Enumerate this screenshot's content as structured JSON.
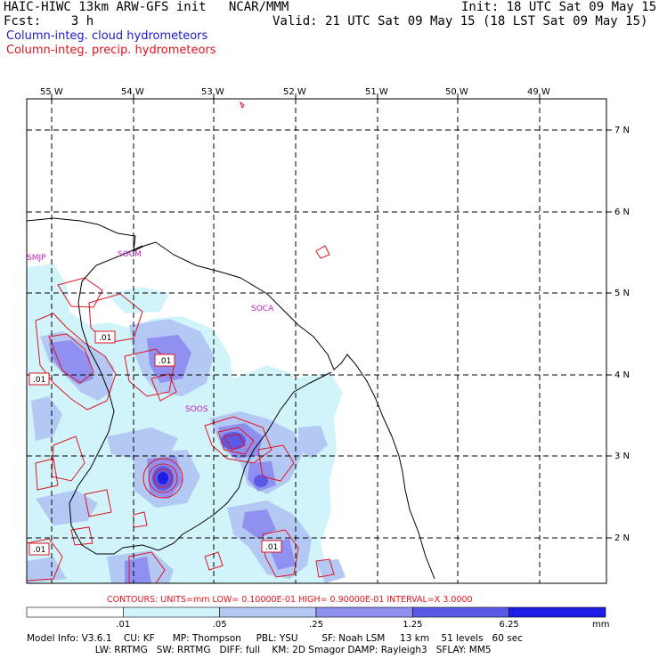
{
  "header": {
    "model_line": "HAIC-HIWC 13km ARW-GFS init   NCAR/MMM",
    "fcst_line": "Fcst:    3 h",
    "init_line": "Init: 18 UTC Sat 09 May 15",
    "valid_line": "Valid: 21 UTC Sat 09 May 15 (18 LST Sat 09 May 15)",
    "legend_cloud": "Column-integ. cloud hydrometeors",
    "legend_precip": "Column-integ. precip. hydrometeors"
  },
  "map": {
    "lon_labels": [
      "55 W",
      "54 W",
      "53 W",
      "52 W",
      "51 W",
      "50 W",
      "49 W"
    ],
    "lat_labels": [
      "7 N",
      "6 N",
      "5 N",
      "4 N",
      "3 N",
      "2 N"
    ],
    "stations": [
      "SMJP",
      "SOCM",
      "SOCA",
      "SOOS"
    ],
    "contour_labels": [
      ".01",
      ".01",
      ".01",
      ".01",
      ".01"
    ]
  },
  "contours_line": "CONTOURS:  UNITS=mm  LOW= 0.10000E-01  HIGH= 0.90000E-01  INTERVAL=X  3.0000",
  "colorbar": {
    "tick_labels": [
      ".01",
      ".05",
      ".25",
      "1.25",
      "6.25"
    ],
    "units": "mm",
    "colors": [
      "#ffffff",
      "#d0f4fa",
      "#b4c8f4",
      "#9090f0",
      "#5a5ae6",
      "#1e1ee6"
    ]
  },
  "model_info": {
    "line1": "Model Info: V3.6.1    CU: KF      MP: Thompson     PBL: YSU        SF: Noah LSM     13 km    51 levels   60 sec",
    "line2": "                       LW: RRTMG   SW: RRTMG   DIFF: full    KM: 2D Smagor DAMP: Rayleigh3   SFLAY: MM5"
  }
}
